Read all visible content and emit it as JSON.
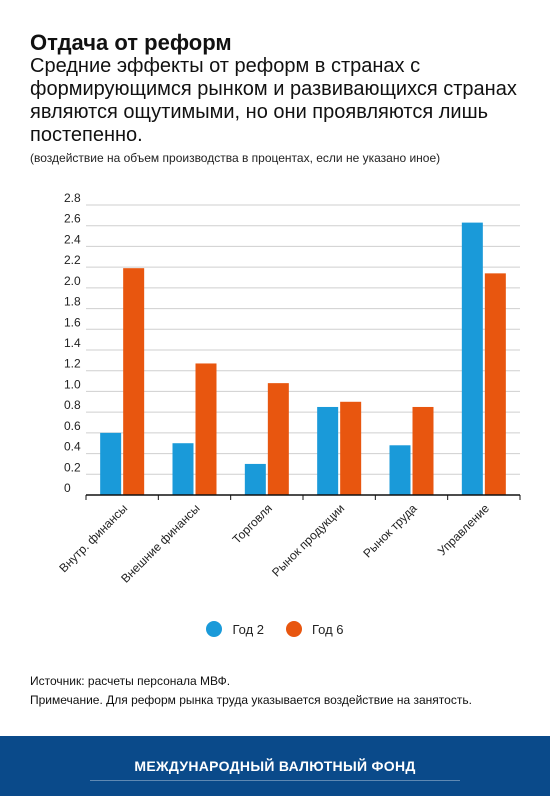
{
  "header": {
    "title": "Отдача от реформ",
    "subtitle": "Средние эффекты от реформ в  странах с формирующимся рынком и развивающихся странах являются ощутимыми, но они проявляются лишь постепенно.",
    "unit_note": "(воздействие на объем производства в процентах, если не указано иное)"
  },
  "chart_data": {
    "type": "bar",
    "title": "",
    "xlabel": "",
    "ylabel": "",
    "categories": [
      "Внутр. финансы",
      "Внешние финансы",
      "Торговля",
      "Рынок продукции",
      "Рынок труда",
      "Управление"
    ],
    "series": [
      {
        "name": "Год 2",
        "color": "#1a9ad9",
        "values": [
          0.6,
          0.5,
          0.3,
          0.85,
          0.48,
          2.63
        ]
      },
      {
        "name": "Год 6",
        "color": "#e8560f",
        "values": [
          2.19,
          1.27,
          1.08,
          0.9,
          0.85,
          2.14
        ]
      }
    ],
    "ylim": [
      0,
      2.8
    ],
    "yticks": [
      "0",
      "0.2",
      "0.4",
      "0.6",
      "0.8",
      "1.0",
      "1.2",
      "1.4",
      "1.6",
      "1.8",
      "2.0",
      "2.2",
      "2.4",
      "2.6",
      "2.8"
    ],
    "grid": true,
    "legend_position": "bottom-center"
  },
  "legend": [
    {
      "label": "Год 2",
      "color": "#1a9ad9"
    },
    {
      "label": "Год 6",
      "color": "#e8560f"
    }
  ],
  "footnotes": {
    "source": "Источник: расчеты персонала МВФ.",
    "note": "Примечание. Для реформ рынка труда указывается воздействие на занятость."
  },
  "footer": {
    "org_name": "МЕЖДУНАРОДНЫЙ ВАЛЮТНЫЙ ФОНД"
  }
}
